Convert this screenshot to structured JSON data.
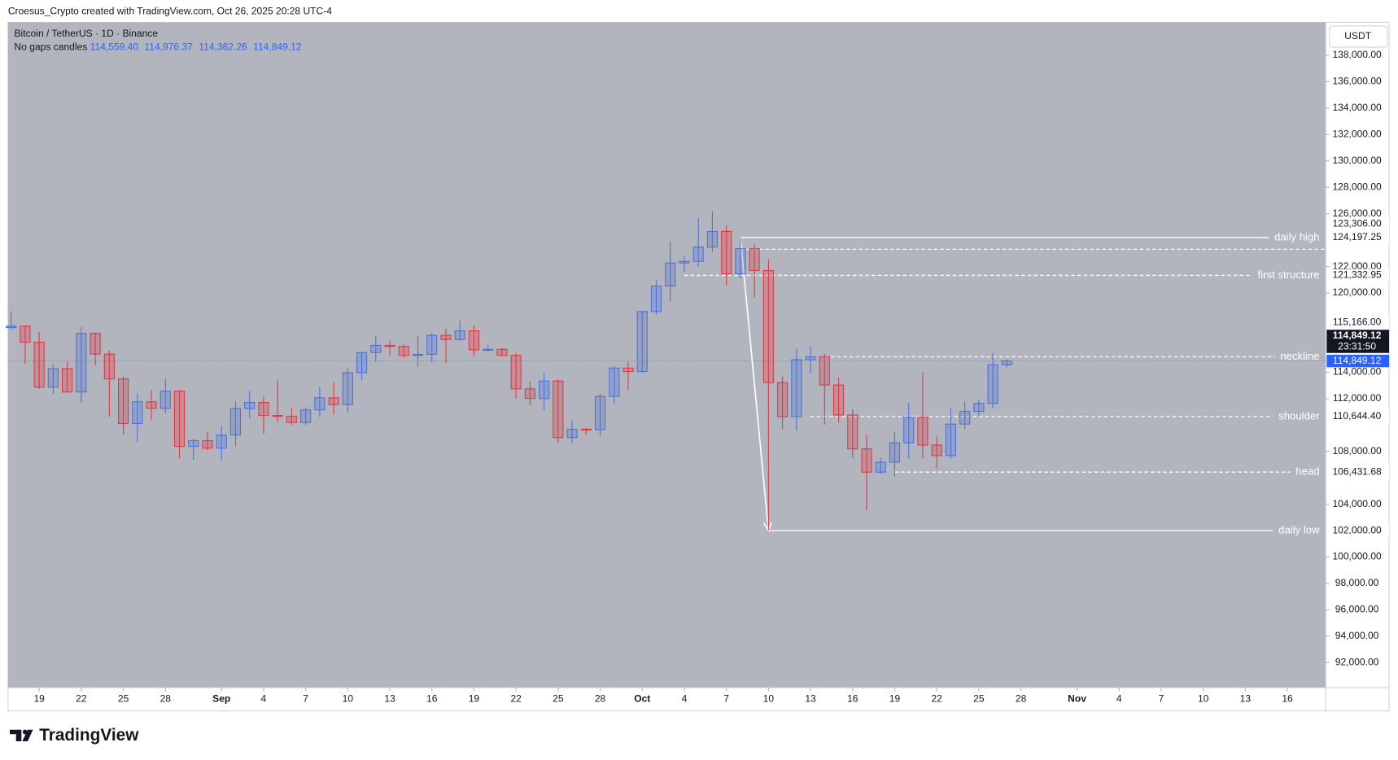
{
  "header": "Croesus_Crypto created with TradingView.com, Oct 26, 2025 20:28 UTC-4",
  "footer": "TradingView",
  "chart_data": {
    "type": "candlestick",
    "title": "Bitcoin / TetherUS · 1D · Binance",
    "subtitle": "No gaps candles",
    "legend_values": [
      "114,559.40",
      "114,976.37",
      "114,362.26",
      "114,849.12"
    ],
    "currency": "USDT",
    "up_color": "#4e72d9",
    "down_color": "#dd3a44",
    "x": [
      "08-17",
      "08-18",
      "08-19",
      "08-20",
      "08-21",
      "08-22",
      "08-23",
      "08-24",
      "08-25",
      "08-26",
      "08-27",
      "08-28",
      "08-29",
      "08-30",
      "08-31",
      "09-01",
      "09-02",
      "09-03",
      "09-04",
      "09-05",
      "09-06",
      "09-07",
      "09-08",
      "09-09",
      "09-10",
      "09-11",
      "09-12",
      "09-13",
      "09-14",
      "09-15",
      "09-16",
      "09-17",
      "09-18",
      "09-19",
      "09-20",
      "09-21",
      "09-22",
      "09-23",
      "09-24",
      "09-25",
      "09-26",
      "09-27",
      "09-28",
      "09-29",
      "09-30",
      "10-01",
      "10-02",
      "10-03",
      "10-04",
      "10-05",
      "10-06",
      "10-07",
      "10-08",
      "10-09",
      "10-10",
      "10-11",
      "10-12",
      "10-13",
      "10-14",
      "10-15",
      "10-16",
      "10-17",
      "10-18",
      "10-19",
      "10-20",
      "10-21",
      "10-22",
      "10-23",
      "10-24",
      "10-25",
      "10-26",
      "10-27"
    ],
    "open": [
      117380,
      117490,
      116270,
      112870,
      114270,
      112500,
      116940,
      115370,
      113490,
      110110,
      111760,
      111260,
      112570,
      108380,
      108820,
      108250,
      109240,
      111240,
      111710,
      110720,
      110660,
      110190,
      111140,
      112060,
      111550,
      113960,
      115490,
      116030,
      115950,
      115270,
      115350,
      116790,
      116470,
      117130,
      115690,
      115730,
      115280,
      112740,
      112010,
      113330,
      109050,
      109680,
      109640,
      112160,
      114310,
      114050,
      118590,
      120530,
      122270,
      122390,
      123480,
      124660,
      121450,
      123350,
      121700,
      113210,
      110640,
      114950,
      115170,
      113030,
      110760,
      108190,
      106430,
      107190,
      108650,
      110590,
      108480,
      107680,
      110070,
      111030,
      111640,
      114559.4
    ],
    "high": [
      118600,
      117540,
      117050,
      114620,
      114820,
      117430,
      117000,
      115650,
      113650,
      112400,
      112650,
      113490,
      112650,
      108980,
      109480,
      109910,
      111770,
      112580,
      112200,
      113380,
      111300,
      111330,
      112900,
      113250,
      114310,
      115500,
      116770,
      116400,
      116130,
      116780,
      116960,
      117290,
      117900,
      117500,
      116060,
      115860,
      115450,
      113280,
      113990,
      113450,
      110370,
      109780,
      112380,
      114460,
      114790,
      118650,
      121000,
      123940,
      122860,
      125700,
      126200,
      125100,
      124170,
      123760,
      122550,
      113650,
      115770,
      115970,
      115400,
      113600,
      111190,
      109240,
      107500,
      109450,
      111700,
      114000,
      109130,
      111300,
      111800,
      111900,
      115470,
      114976.37
    ],
    "low": [
      117250,
      114640,
      112730,
      112380,
      112580,
      111680,
      114530,
      110620,
      109270,
      108700,
      110350,
      110860,
      107460,
      107360,
      108080,
      107270,
      108390,
      110500,
      109330,
      110200,
      110000,
      110000,
      110620,
      110780,
      110940,
      113400,
      114790,
      115200,
      115100,
      114400,
      114740,
      114720,
      116400,
      115160,
      115550,
      115250,
      112000,
      111500,
      111100,
      108630,
      108620,
      109250,
      109200,
      111560,
      112650,
      113970,
      118380,
      119340,
      121570,
      122000,
      123100,
      120600,
      121060,
      119650,
      102000,
      109680,
      109560,
      113930,
      110020,
      110200,
      107500,
      103530,
      106320,
      106100,
      107430,
      107460,
      106700,
      107430,
      109690,
      110700,
      111260,
      114362.26
    ],
    "close": [
      117490,
      116270,
      112870,
      114270,
      112500,
      116940,
      115370,
      113490,
      110110,
      111760,
      111260,
      112570,
      108380,
      108820,
      108250,
      109240,
      111240,
      111710,
      110720,
      110660,
      110190,
      111140,
      112060,
      111550,
      113960,
      115490,
      116030,
      115950,
      115270,
      115350,
      116790,
      116470,
      117130,
      115690,
      115730,
      115280,
      112740,
      112010,
      113330,
      109050,
      109680,
      109640,
      112160,
      114310,
      114050,
      118590,
      120530,
      122270,
      122390,
      123480,
      124660,
      121450,
      123350,
      121700,
      113210,
      110640,
      114950,
      115170,
      113030,
      110760,
      108190,
      106430,
      107190,
      108650,
      110590,
      108480,
      107680,
      110070,
      111030,
      111640,
      114559.4,
      114849.12
    ],
    "ylim": [
      90100,
      140500
    ],
    "yticks": [
      {
        "value": 138000,
        "label": "138,000.00"
      },
      {
        "value": 136000,
        "label": "136,000.00"
      },
      {
        "value": 134000,
        "label": "134,000.00"
      },
      {
        "value": 132000,
        "label": "132,000.00"
      },
      {
        "value": 130000,
        "label": "130,000.00"
      },
      {
        "value": 128000,
        "label": "128,000.00"
      },
      {
        "value": 126000,
        "label": "126,000.00"
      },
      {
        "value": 122000,
        "label": "122,000.00"
      },
      {
        "value": 120000,
        "label": "120,000.00"
      },
      {
        "value": 114000,
        "label": "114,000.00"
      },
      {
        "value": 112000,
        "label": "112,000.00"
      },
      {
        "value": 108000,
        "label": "108,000.00"
      },
      {
        "value": 104000,
        "label": "104,000.00"
      },
      {
        "value": 100000,
        "label": "100,000.00"
      },
      {
        "value": 98000,
        "label": "98,000.00"
      },
      {
        "value": 96000,
        "label": "96,000.00"
      },
      {
        "value": 94000,
        "label": "94,000.00"
      },
      {
        "value": 92000,
        "label": "92,000.00"
      }
    ],
    "xticks": [
      {
        "value": "08-19",
        "label": "19"
      },
      {
        "value": "08-22",
        "label": "22"
      },
      {
        "value": "08-25",
        "label": "25"
      },
      {
        "value": "08-28",
        "label": "28"
      },
      {
        "value": "09-01",
        "label": "Sep"
      },
      {
        "value": "09-04",
        "label": "4"
      },
      {
        "value": "09-07",
        "label": "7"
      },
      {
        "value": "09-10",
        "label": "10"
      },
      {
        "value": "09-13",
        "label": "13"
      },
      {
        "value": "09-16",
        "label": "16"
      },
      {
        "value": "09-19",
        "label": "19"
      },
      {
        "value": "09-22",
        "label": "22"
      },
      {
        "value": "09-25",
        "label": "25"
      },
      {
        "value": "09-28",
        "label": "28"
      },
      {
        "value": "10-01",
        "label": "Oct"
      },
      {
        "value": "10-04",
        "label": "4"
      },
      {
        "value": "10-07",
        "label": "7"
      },
      {
        "value": "10-10",
        "label": "10"
      },
      {
        "value": "10-13",
        "label": "13"
      },
      {
        "value": "10-16",
        "label": "16"
      },
      {
        "value": "10-19",
        "label": "19"
      },
      {
        "value": "10-22",
        "label": "22"
      },
      {
        "value": "10-25",
        "label": "25"
      },
      {
        "value": "10-28",
        "label": "28"
      },
      {
        "value": "11-01",
        "label": "Nov"
      },
      {
        "value": "11-04",
        "label": "4"
      },
      {
        "value": "11-07",
        "label": "7"
      },
      {
        "value": "11-10",
        "label": "10"
      },
      {
        "value": "11-13",
        "label": "13"
      },
      {
        "value": "11-16",
        "label": "16"
      }
    ],
    "current_price": {
      "value": 114849.12,
      "label": "114,849.12",
      "countdown": "23:31:50"
    },
    "annotations": [
      {
        "label": "daily high",
        "value": 124197.25,
        "value_label": "124,197.25",
        "line": "solid",
        "from": "10-08"
      },
      {
        "value": 123306,
        "value_label": "123,306.00",
        "line": "dashed",
        "from": "10-08"
      },
      {
        "label": "first structure",
        "value": 121332.95,
        "value_label": "121,332.95",
        "line": "dashed",
        "from": "10-04"
      },
      {
        "label": "neckline",
        "value": 115166,
        "value_label": "115,166.00",
        "line": "dashed",
        "from": "10-14"
      },
      {
        "label": "shoulder",
        "value": 110644.4,
        "value_label": "110,644.40",
        "line": "dashed",
        "from": "10-13"
      },
      {
        "label": "head",
        "value": 106431.68,
        "value_label": "106,431.68",
        "line": "dashed",
        "from": "10-19"
      },
      {
        "label": "daily low",
        "value": 102000,
        "value_label": "102,000.00",
        "line": "solid",
        "from": "10-10"
      }
    ]
  }
}
